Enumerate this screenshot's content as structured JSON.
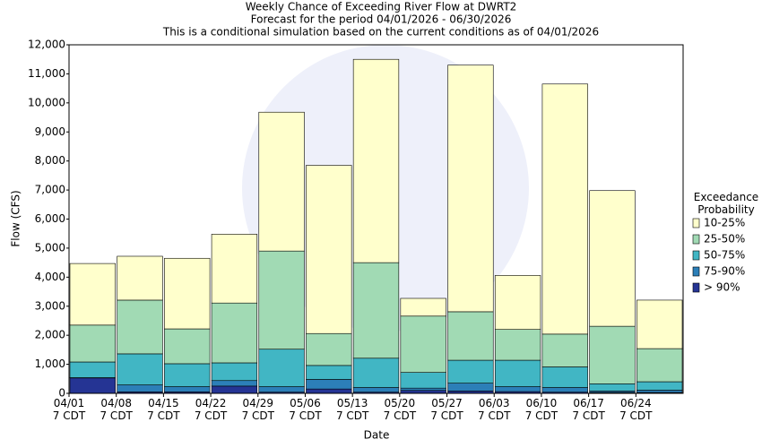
{
  "chart_data": {
    "type": "stacked_bar",
    "title": "Weekly Chance of Exceeding River Flow at DWRT2",
    "subtitle": "Forecast for the period 04/01/2026 - 06/30/2026",
    "subtitle2": "This is a conditional simulation based on the current conditions as of 04/01/2026",
    "x_label": "Date",
    "y_label": "Flow (CFS)",
    "legend_title": "Exceedance Probability",
    "categories": [
      "04/01\n7 CDT",
      "04/08\n7 CDT",
      "04/15\n7 CDT",
      "04/22\n7 CDT",
      "04/29\n7 CDT",
      "05/06\n7 CDT",
      "05/13\n7 CDT",
      "05/20\n7 CDT",
      "05/27\n7 CDT",
      "06/03\n7 CDT",
      "06/10\n7 CDT",
      "06/17\n7 CDT",
      "06/24\n7 CDT"
    ],
    "series": [
      {
        "name": "> 90%",
        "color": "#253494",
        "values": [
          530,
          50,
          50,
          250,
          40,
          150,
          40,
          100,
          80,
          60,
          40,
          30,
          30
        ]
      },
      {
        "name": "75-90%",
        "color": "#2c7fb8",
        "values": [
          10,
          240,
          180,
          190,
          190,
          330,
          160,
          80,
          270,
          170,
          160,
          50,
          80
        ]
      },
      {
        "name": "50-75%",
        "color": "#41b6c4",
        "values": [
          540,
          1070,
          790,
          610,
          1290,
          480,
          1010,
          540,
          790,
          910,
          710,
          250,
          290
        ]
      },
      {
        "name": "25-50%",
        "color": "#a1dab4",
        "values": [
          1270,
          1850,
          1200,
          2060,
          3380,
          1100,
          3290,
          1940,
          1670,
          1060,
          1130,
          1980,
          1140
        ]
      },
      {
        "name": "10-25%",
        "color": "#ffffcc",
        "values": [
          2120,
          1510,
          2430,
          2370,
          4780,
          5790,
          7000,
          610,
          8490,
          1860,
          8610,
          4670,
          1670
        ]
      }
    ],
    "ylim": [
      0,
      12000
    ],
    "yticks": [
      0,
      {
        "value": 1000,
        "label": "1,000"
      },
      {
        "value": 2000,
        "label": "2,000"
      },
      {
        "value": 3000,
        "label": "3,000"
      },
      {
        "value": 4000,
        "label": "4,000"
      },
      {
        "value": 5000,
        "label": "5,000"
      },
      {
        "value": 6000,
        "label": "6,000"
      },
      {
        "value": 7000,
        "label": "7,000"
      },
      {
        "value": 8000,
        "label": "8,000"
      },
      {
        "value": 9000,
        "label": "9,000"
      },
      {
        "value": 10000,
        "label": "10,000"
      },
      {
        "value": 11000,
        "label": "11,000"
      },
      {
        "value": 12000,
        "label": "12,000"
      }
    ],
    "grid": false,
    "legend": "right"
  }
}
